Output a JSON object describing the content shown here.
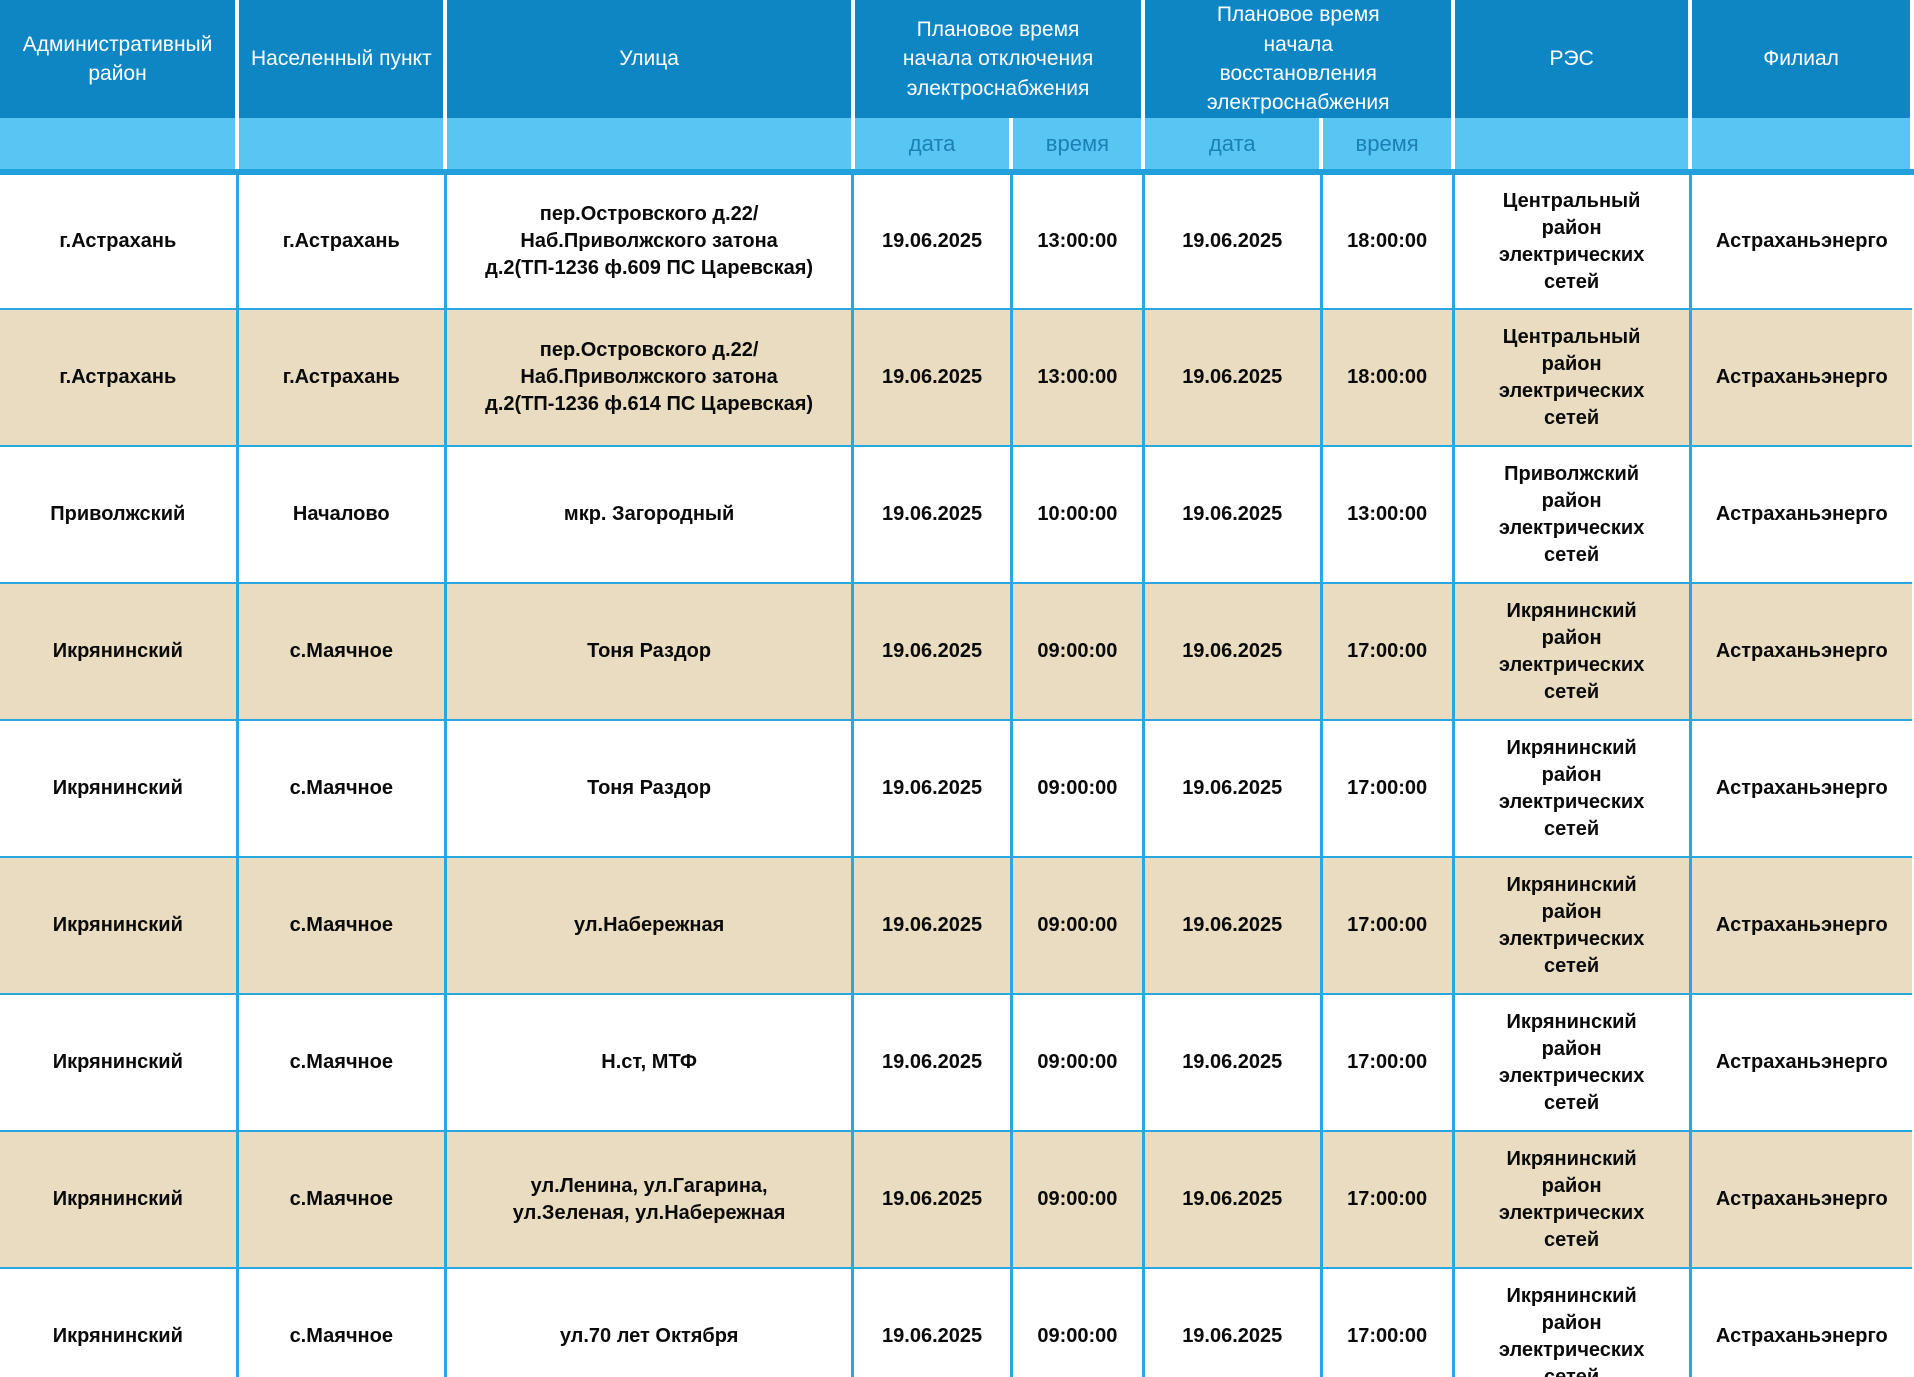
{
  "theme": {
    "header_bg": "#0e86c4",
    "subheader_bg": "#58c6f2",
    "subheader_text": "#1c7fb6",
    "grid_line": "#2aa7e1",
    "stripe": "#21a0db",
    "row_alt_bg": "#e9dcc0",
    "row_bg": "#ffffff",
    "body_text": "#0a0a0a"
  },
  "table": {
    "headers": {
      "admin_district": "Административный район",
      "settlement": "Населенный пункт",
      "street": "Улица",
      "outage_start": "Плановое время начала отключения электроснабжения",
      "restore_start": "Плановое время начала восстановления электроснабжения",
      "res": "РЭС",
      "branch": "Филиал",
      "sub_date": "дата",
      "sub_time": "время"
    },
    "rows": [
      {
        "admin_district": "г.Астрахань",
        "settlement": "г.Астрахань",
        "street": "пер.Островского д.22/ Наб.Приволжского затона д.2(ТП-1236 ф.609 ПС Царевская)",
        "off_date": "19.06.2025",
        "off_time": "13:00:00",
        "on_date": "19.06.2025",
        "on_time": "18:00:00",
        "res": "Центральный район электрических сетей",
        "branch": "Астраханьэнерго"
      },
      {
        "admin_district": "г.Астрахань",
        "settlement": "г.Астрахань",
        "street": "пер.Островского д.22/ Наб.Приволжского затона д.2(ТП-1236 ф.614 ПС Царевская)",
        "off_date": "19.06.2025",
        "off_time": "13:00:00",
        "on_date": "19.06.2025",
        "on_time": "18:00:00",
        "res": "Центральный район электрических сетей",
        "branch": "Астраханьэнерго"
      },
      {
        "admin_district": "Приволжский",
        "settlement": "Началово",
        "street": "мкр. Загородный",
        "off_date": "19.06.2025",
        "off_time": "10:00:00",
        "on_date": "19.06.2025",
        "on_time": "13:00:00",
        "res": "Приволжский район электрических сетей",
        "branch": "Астраханьэнерго"
      },
      {
        "admin_district": "Икрянинский",
        "settlement": "с.Маячное",
        "street": "Тоня Раздор",
        "off_date": "19.06.2025",
        "off_time": "09:00:00",
        "on_date": "19.06.2025",
        "on_time": "17:00:00",
        "res": "Икрянинский район электрических сетей",
        "branch": "Астраханьэнерго"
      },
      {
        "admin_district": "Икрянинский",
        "settlement": "с.Маячное",
        "street": "Тоня Раздор",
        "off_date": "19.06.2025",
        "off_time": "09:00:00",
        "on_date": "19.06.2025",
        "on_time": "17:00:00",
        "res": "Икрянинский район электрических сетей",
        "branch": "Астраханьэнерго"
      },
      {
        "admin_district": "Икрянинский",
        "settlement": "с.Маячное",
        "street": "ул.Набережная",
        "off_date": "19.06.2025",
        "off_time": "09:00:00",
        "on_date": "19.06.2025",
        "on_time": "17:00:00",
        "res": "Икрянинский район электрических сетей",
        "branch": "Астраханьэнерго"
      },
      {
        "admin_district": "Икрянинский",
        "settlement": "с.Маячное",
        "street": "Н.ст, МТФ",
        "off_date": "19.06.2025",
        "off_time": "09:00:00",
        "on_date": "19.06.2025",
        "on_time": "17:00:00",
        "res": "Икрянинский район электрических сетей",
        "branch": "Астраханьэнерго"
      },
      {
        "admin_district": "Икрянинский",
        "settlement": "с.Маячное",
        "street": "ул.Ленина, ул.Гагарина, ул.Зеленая, ул.Набережная",
        "off_date": "19.06.2025",
        "off_time": "09:00:00",
        "on_date": "19.06.2025",
        "on_time": "17:00:00",
        "res": "Икрянинский район электрических сетей",
        "branch": "Астраханьэнерго"
      },
      {
        "admin_district": "Икрянинский",
        "settlement": "с.Маячное",
        "street": "ул.70 лет Октября",
        "off_date": "19.06.2025",
        "off_time": "09:00:00",
        "on_date": "19.06.2025",
        "on_time": "17:00:00",
        "res": "Икрянинский район электрических сетей",
        "branch": "Астраханьэнерго"
      }
    ]
  }
}
